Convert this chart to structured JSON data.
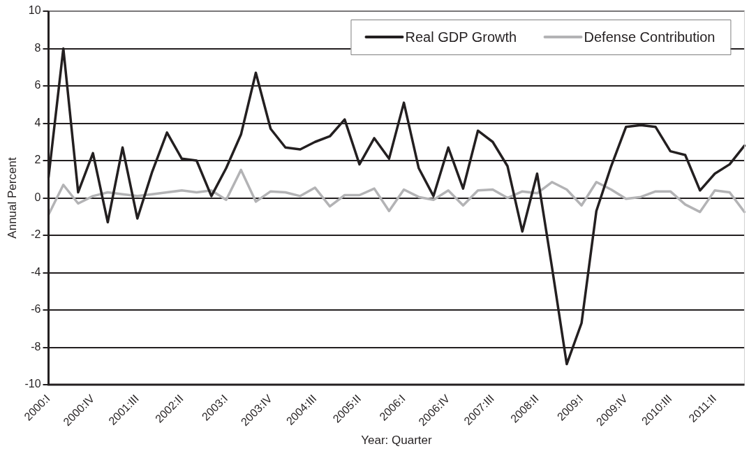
{
  "chart_data": {
    "type": "line",
    "xlabel": "Year: Quarter",
    "ylabel": "Annual Percent",
    "categories": [
      "2000:I",
      null,
      null,
      "2000:IV",
      null,
      null,
      "2001:III",
      null,
      null,
      "2002:II",
      null,
      null,
      "2003:I",
      null,
      null,
      "2003:IV",
      null,
      null,
      "2004:III",
      null,
      null,
      "2005:II",
      null,
      null,
      "2006:I",
      null,
      null,
      "2006:IV",
      null,
      null,
      "2007:III",
      null,
      null,
      "2008:II",
      null,
      null,
      "2009:I",
      null,
      null,
      "2009:IV",
      null,
      null,
      "2010:III",
      null,
      null,
      "2011:II",
      null,
      null
    ],
    "series": [
      {
        "name": "Real GDP Growth",
        "color": "#231f20",
        "values": [
          1.1,
          8.0,
          0.3,
          2.4,
          -1.3,
          2.7,
          -1.1,
          1.4,
          3.5,
          2.1,
          2.0,
          0.1,
          1.6,
          3.4,
          6.7,
          3.7,
          2.7,
          2.6,
          3.0,
          3.3,
          4.2,
          1.8,
          3.2,
          2.1,
          5.1,
          1.6,
          0.1,
          2.7,
          0.5,
          3.6,
          3.0,
          1.7,
          -1.8,
          1.3,
          -3.7,
          -8.9,
          -6.7,
          -0.7,
          1.7,
          3.8,
          3.9,
          3.8,
          2.5,
          2.3,
          0.4,
          1.3,
          1.8,
          2.8
        ]
      },
      {
        "name": "Defense Contribution",
        "color": "#b3b3b5",
        "values": [
          -0.9,
          0.7,
          -0.3,
          0.1,
          0.3,
          0.2,
          0.1,
          0.2,
          0.3,
          0.4,
          0.3,
          0.4,
          -0.1,
          1.5,
          -0.2,
          0.35,
          0.3,
          0.1,
          0.55,
          -0.45,
          0.15,
          0.15,
          0.5,
          -0.7,
          0.45,
          0.05,
          -0.1,
          0.4,
          -0.4,
          0.4,
          0.45,
          0.0,
          0.35,
          0.25,
          0.85,
          0.45,
          -0.4,
          0.85,
          0.45,
          -0.05,
          0.05,
          0.35,
          0.35,
          -0.35,
          -0.75,
          0.4,
          0.3,
          -0.75
        ]
      }
    ],
    "ylim": [
      -10,
      10
    ],
    "yticks": [
      -10,
      -8,
      -6,
      -4,
      -2,
      0,
      2,
      4,
      6,
      8,
      10
    ],
    "grid": "y",
    "legend": "top right",
    "marker": "none",
    "line_style": "solid"
  }
}
